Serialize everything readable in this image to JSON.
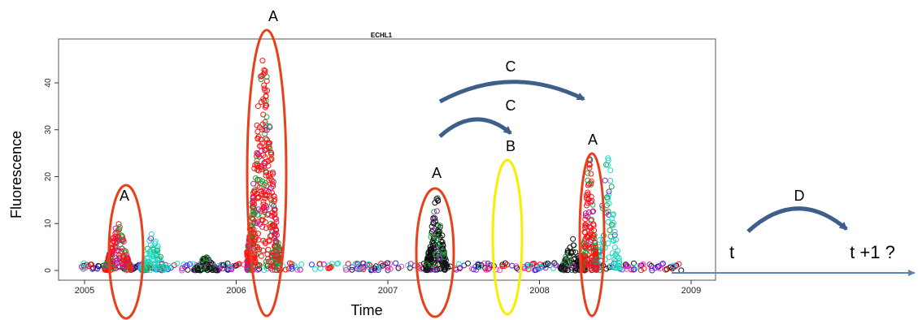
{
  "chart_data": {
    "type": "scatter",
    "title": "ECHL1",
    "xlabel": "Time",
    "ylabel": "Fluorescence",
    "xlim": [
      2004.85,
      2009.15
    ],
    "ylim": [
      -1.5,
      48
    ],
    "x_ticks": [
      "2005",
      "2006",
      "2007",
      "2008",
      "2009"
    ],
    "y_ticks": [
      "0",
      "10",
      "20",
      "30",
      "40"
    ],
    "grid": false,
    "legend": "none",
    "bursts": [
      {
        "x": 2005.22,
        "peak": 10,
        "color": "#ff1010"
      },
      {
        "x": 2006.18,
        "peak": 46,
        "color": "#ff1010"
      },
      {
        "x": 2007.32,
        "peak": 16,
        "color": "#101010"
      },
      {
        "x": 2008.33,
        "peak": 24,
        "color": "#ff1010"
      }
    ],
    "secondary_bursts": [
      {
        "x": 2005.45,
        "peak": 8,
        "color": "#20d8c0"
      },
      {
        "x": 2005.8,
        "peak": 3,
        "color": "#101010"
      },
      {
        "x": 2008.22,
        "peak": 7,
        "color": "#101010"
      },
      {
        "x": 2008.45,
        "peak": 24,
        "color": "#20d8c0"
      }
    ]
  },
  "annotations": {
    "label_a": "A",
    "label_b": "B",
    "label_c": "C",
    "label_d": "D",
    "label_t": "t",
    "label_t1": "t +1 ?"
  },
  "colors": {
    "highlight_a": "#e8401c",
    "highlight_b": "#f4f000",
    "arrow": "#3d5f8a",
    "timeline": "#5b86b4"
  }
}
